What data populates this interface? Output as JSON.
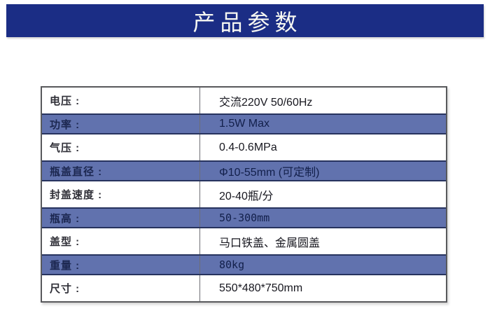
{
  "header": {
    "title": "产品参数"
  },
  "table": {
    "rows": [
      {
        "label": "电压 :",
        "value": "交流220V 50/60Hz",
        "variant": "white"
      },
      {
        "label": "功率 :",
        "value": "1.5W Max",
        "variant": "blue"
      },
      {
        "label": "气压 :",
        "value": "0.4-0.6MPa",
        "variant": "white"
      },
      {
        "label": "瓶盖直径 :",
        "value": "Φ10-55mm (可定制)",
        "variant": "blue"
      },
      {
        "label": "封盖速度 :",
        "value": "20-40瓶/分",
        "variant": "white"
      },
      {
        "label": "瓶高 :",
        "value": "50-300mm",
        "variant": "blue"
      },
      {
        "label": "盖型 :",
        "value": "马口铁盖、金属圆盖",
        "variant": "white"
      },
      {
        "label": "重量 :",
        "value": "80kg",
        "variant": "blue"
      },
      {
        "label": "尺寸 :",
        "value": "550*480*750mm",
        "variant": "white"
      }
    ]
  },
  "colors": {
    "banner_bg": "#1b2d85",
    "banner_text": "#f7f8f2",
    "row_blue": "#6172ae",
    "row_blue_border": "#27335e",
    "table_border": "#58595c",
    "divider": "#6e6e74",
    "label_text": "#2e2e36",
    "label_text_blue": "#1c2750",
    "value_text": "#17171f",
    "value_text_blue": "#121f4a"
  }
}
